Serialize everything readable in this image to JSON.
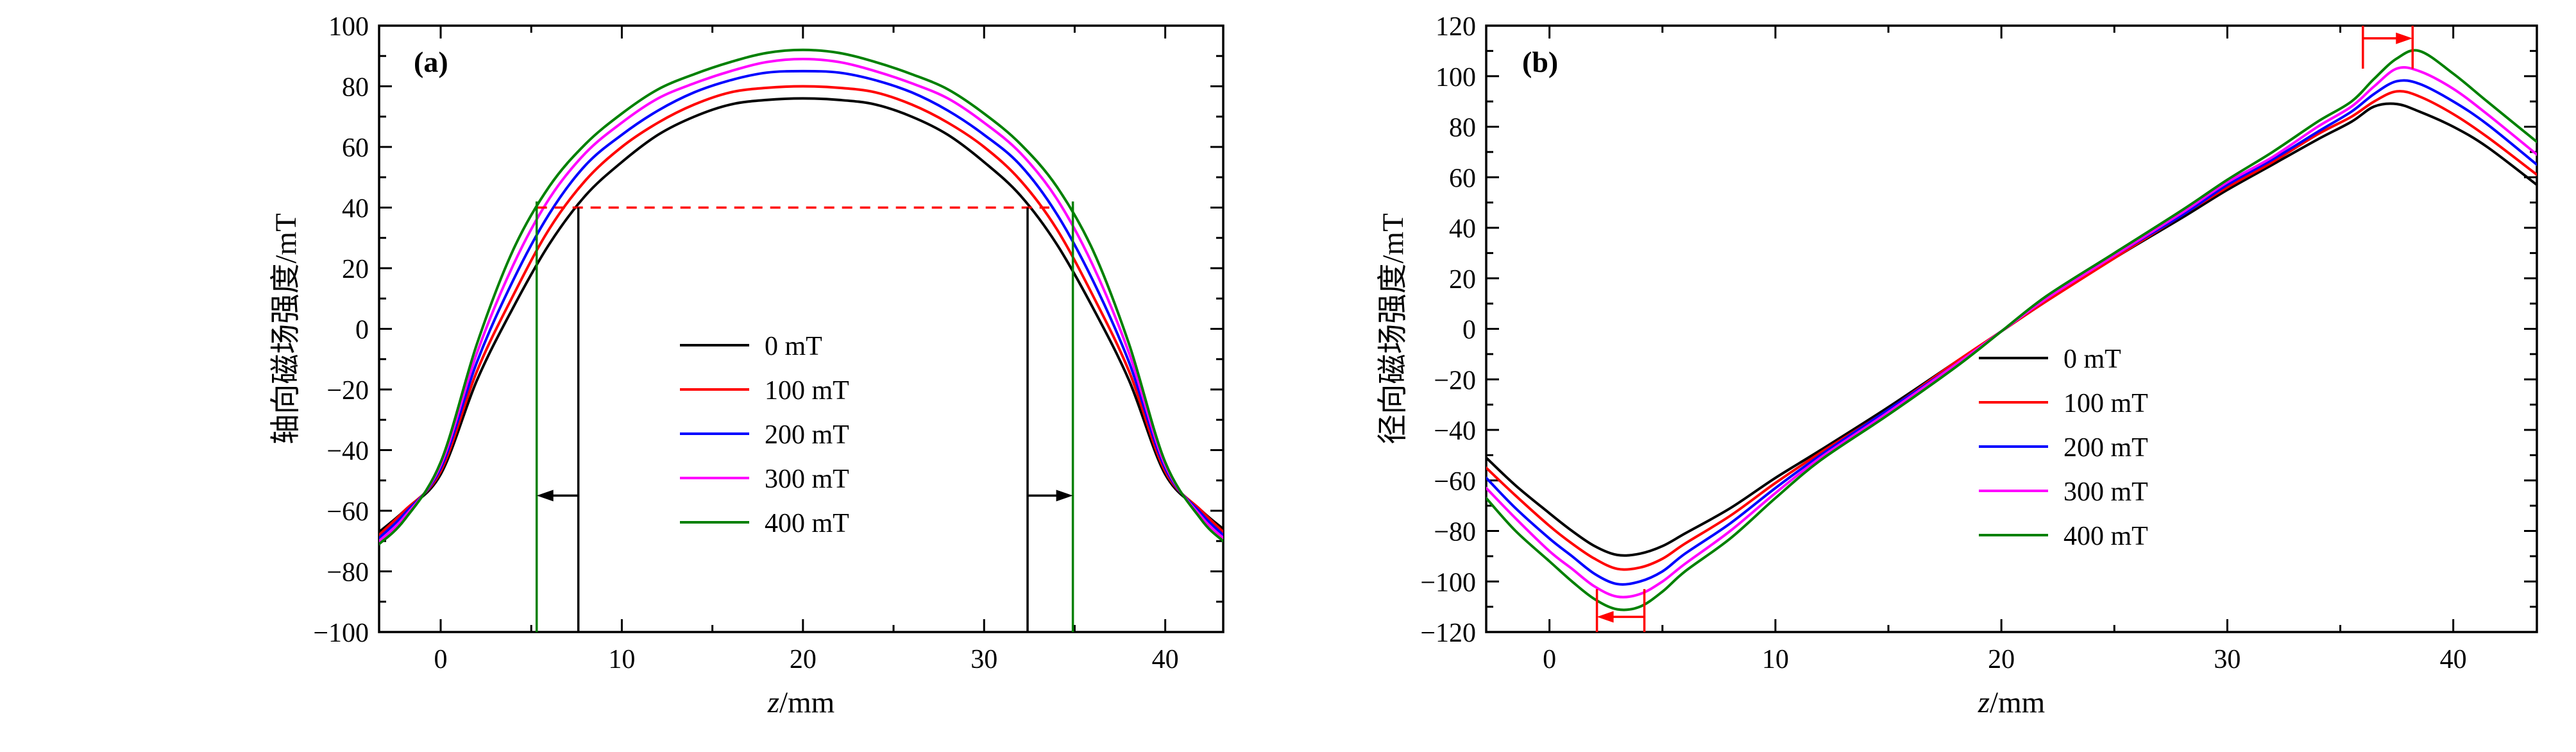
{
  "figure": {
    "background": "#ffffff",
    "accent_colors": {
      "series_black": "#000000",
      "series_red": "#ff0000",
      "series_blue": "#0000ff",
      "series_magenta": "#ff00ff",
      "series_green": "#008000",
      "annotation_red": "#ff0000"
    }
  },
  "chart_data": [
    {
      "type": "line",
      "panel_label": "(a)",
      "xlabel": "z/mm",
      "ylabel": "轴向磁场强度/mT",
      "xlim": [
        -3.4,
        43.2
      ],
      "ylim": [
        -100,
        100
      ],
      "x_major_ticks": [
        0,
        10,
        20,
        30,
        40
      ],
      "x_minor_ticks": [
        5,
        15,
        25,
        35
      ],
      "y_major_step": 20,
      "y_minor_step": 10,
      "legend_position": "inside center",
      "grid": false,
      "x": [
        -3.4,
        -2,
        0,
        2,
        4,
        6,
        8,
        10,
        12,
        14,
        16,
        18,
        20,
        22,
        24,
        26,
        28,
        30,
        32,
        34,
        36,
        38,
        40,
        42,
        43.2
      ],
      "series": [
        {
          "name": "0 mT",
          "color": "#000000",
          "values": [
            -67,
            -60,
            -48,
            -17,
            7,
            28,
            44,
            55,
            64,
            70,
            74,
            75.5,
            76,
            75.5,
            74,
            70,
            64,
            55,
            44,
            28,
            7,
            -17,
            -48,
            -60,
            -66
          ]
        },
        {
          "name": "100 mT",
          "color": "#ff0000",
          "values": [
            -68,
            -60,
            -47,
            -14,
            11,
            33,
            49,
            60,
            68,
            74,
            78,
            79.5,
            80,
            79.5,
            78,
            74,
            68,
            60,
            49,
            33,
            11,
            -14,
            -47,
            -60,
            -67
          ]
        },
        {
          "name": "200 mT",
          "color": "#0000ff",
          "values": [
            -69,
            -61,
            -46,
            -11,
            16,
            38,
            54,
            64,
            72,
            78,
            82,
            84.5,
            85,
            84.5,
            82,
            78,
            72,
            64,
            54,
            38,
            16,
            -11,
            -46,
            -61,
            -68
          ]
        },
        {
          "name": "300 mT",
          "color": "#ff00ff",
          "values": [
            -70,
            -62,
            -45,
            -8,
            21,
            43,
            58,
            68,
            76,
            81,
            85,
            88,
            89,
            88,
            85,
            81,
            76,
            68,
            58,
            43,
            21,
            -8,
            -45,
            -62,
            -69
          ]
        },
        {
          "name": "400 mT",
          "color": "#008000",
          "values": [
            -71,
            -63,
            -44,
            -5,
            26,
            47,
            61,
            71,
            79,
            84,
            88,
            91,
            92,
            91,
            88,
            84,
            79,
            71,
            61,
            47,
            26,
            -5,
            -44,
            -63,
            -70
          ]
        }
      ],
      "annotations": [
        {
          "kind": "dashed-hline",
          "y": 40,
          "x1": 5.3,
          "x2": 33.6,
          "color": "#ff0000"
        },
        {
          "kind": "vline",
          "x": 7.6,
          "y1": -100,
          "y2": 40,
          "color": "#000000"
        },
        {
          "kind": "vline",
          "x": 32.4,
          "y1": -100,
          "y2": 40,
          "color": "#000000"
        },
        {
          "kind": "vline",
          "x": 5.3,
          "y1": -100,
          "y2": 42,
          "color": "#008000"
        },
        {
          "kind": "vline",
          "x": 34.9,
          "y1": -100,
          "y2": 42,
          "color": "#008000"
        },
        {
          "kind": "arrow",
          "x1": 7.6,
          "y1": -55,
          "x2": 5.3,
          "y2": -55,
          "color": "#000000"
        },
        {
          "kind": "arrow",
          "x1": 32.4,
          "y1": -55,
          "x2": 34.9,
          "y2": -55,
          "color": "#000000"
        }
      ]
    },
    {
      "type": "line",
      "panel_label": "(b)",
      "xlabel": "z/mm",
      "ylabel": "径向磁场强度/mT",
      "xlim": [
        -2.8,
        43.7
      ],
      "ylim": [
        -120,
        120
      ],
      "x_major_ticks": [
        0,
        10,
        20,
        30,
        40
      ],
      "x_minor_ticks": [
        5,
        15,
        25,
        35
      ],
      "y_major_step": 20,
      "y_minor_step": 10,
      "legend_position": "inside lower right of center",
      "grid": false,
      "x": [
        -2.8,
        -1.5,
        0,
        1,
        2,
        3,
        4,
        5,
        6,
        8,
        10,
        12,
        15,
        18,
        20,
        22,
        25,
        28,
        30,
        32,
        34,
        35.5,
        36.5,
        37.5,
        38.5,
        40,
        41.5,
        43.7
      ],
      "series": [
        {
          "name": "0 mT",
          "color": "#000000",
          "values": [
            -51,
            -62,
            -73,
            -80,
            -86,
            -89.5,
            -89,
            -86,
            -81,
            -71,
            -59,
            -48,
            -31,
            -13,
            -1,
            11,
            28,
            44,
            55,
            65,
            75,
            82,
            88,
            89,
            86,
            80,
            72,
            57
          ]
        },
        {
          "name": "100 mT",
          "color": "#ff0000",
          "values": [
            -55,
            -66,
            -78,
            -85,
            -91,
            -95,
            -94.5,
            -91,
            -85,
            -74,
            -61,
            -49,
            -32,
            -13,
            -1,
            11,
            28,
            45,
            56,
            66,
            77,
            84,
            90,
            94,
            92,
            85,
            76,
            61
          ]
        },
        {
          "name": "200 mT",
          "color": "#0000ff",
          "values": [
            -59,
            -71,
            -83,
            -90,
            -97,
            -101,
            -100,
            -96,
            -89,
            -77,
            -63,
            -50,
            -32,
            -14,
            -1,
            12,
            29,
            45,
            57,
            67,
            78,
            86,
            93,
            98,
            97,
            90,
            81,
            65
          ]
        },
        {
          "name": "300 mT",
          "color": "#ff00ff",
          "values": [
            -63,
            -75,
            -88,
            -95,
            -102,
            -106,
            -105,
            -100,
            -93,
            -80,
            -65,
            -51,
            -33,
            -14,
            -1,
            12,
            29,
            46,
            58,
            68,
            80,
            88,
            96,
            103,
            102,
            95,
            85,
            69
          ]
        },
        {
          "name": "400 mT",
          "color": "#008000",
          "values": [
            -67,
            -80,
            -92,
            -100,
            -107,
            -111,
            -110,
            -104,
            -96,
            -83,
            -67,
            -52,
            -34,
            -15,
            -1,
            13,
            30,
            47,
            59,
            70,
            82,
            90,
            99,
            107,
            110,
            101,
            90,
            74
          ]
        }
      ],
      "annotations": [
        {
          "kind": "vline",
          "x": 36.0,
          "y1": 103,
          "y2": 120,
          "color": "#ff0000"
        },
        {
          "kind": "vline",
          "x": 38.2,
          "y1": 103,
          "y2": 120,
          "color": "#ff0000"
        },
        {
          "kind": "arrow",
          "x1": 36.0,
          "y1": 115,
          "x2": 38.2,
          "y2": 115,
          "color": "#ff0000"
        },
        {
          "kind": "vline",
          "x": 2.1,
          "y1": -120,
          "y2": -103,
          "color": "#ff0000"
        },
        {
          "kind": "vline",
          "x": 4.2,
          "y1": -120,
          "y2": -103,
          "color": "#ff0000"
        },
        {
          "kind": "arrow",
          "x1": 4.2,
          "y1": -114,
          "x2": 2.1,
          "y2": -114,
          "color": "#ff0000"
        }
      ]
    }
  ]
}
